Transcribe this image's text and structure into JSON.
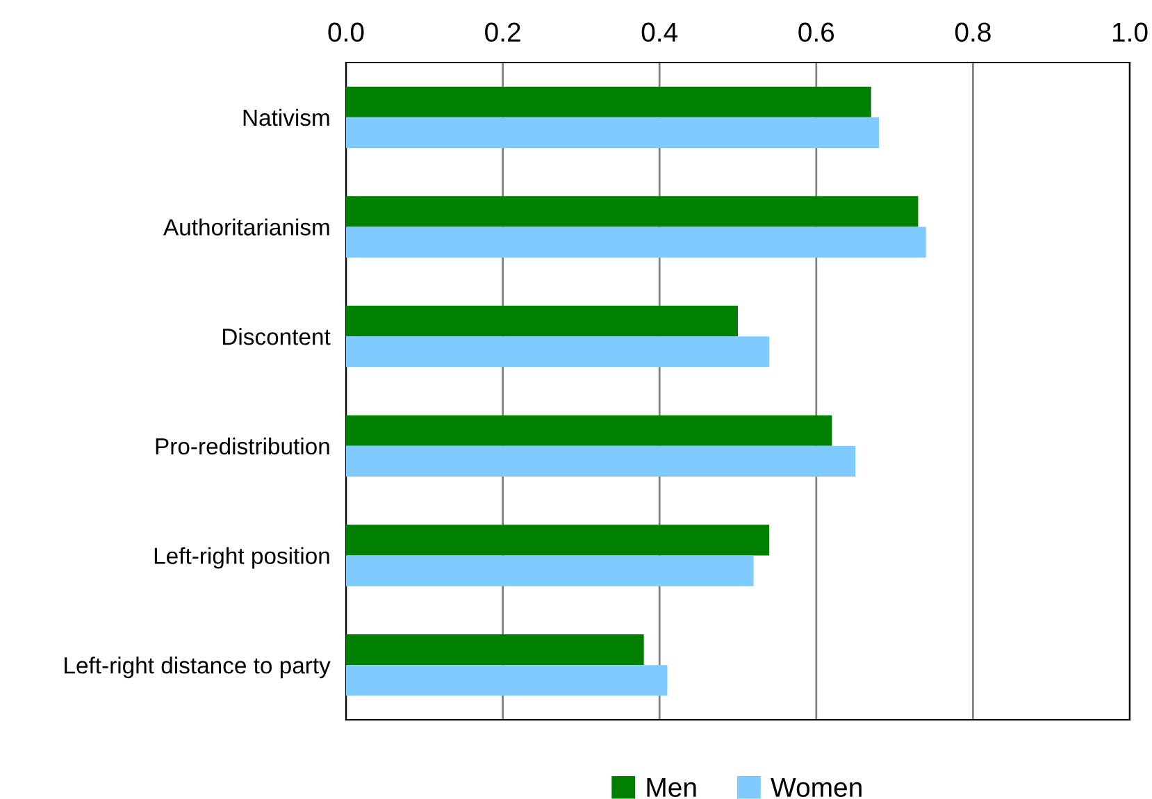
{
  "chart_data": {
    "type": "bar",
    "orientation": "horizontal",
    "categories": [
      "Nativism",
      "Authoritarianism",
      "Discontent",
      "Pro-redistribution",
      "Left-right position",
      "Left-right distance to party"
    ],
    "series": [
      {
        "name": "Men",
        "color": "#008000",
        "values": [
          0.67,
          0.73,
          0.5,
          0.62,
          0.54,
          0.38
        ]
      },
      {
        "name": "Women",
        "color": "#7fcbff",
        "values": [
          0.68,
          0.74,
          0.54,
          0.65,
          0.52,
          0.41
        ]
      }
    ],
    "xlim": [
      0,
      1
    ],
    "xticks": [
      {
        "value": 0.0,
        "label": "0.0"
      },
      {
        "value": 0.2,
        "label": "0.2"
      },
      {
        "value": 0.4,
        "label": "0.4"
      },
      {
        "value": 0.6,
        "label": "0.6"
      },
      {
        "value": 0.8,
        "label": "0.8"
      },
      {
        "value": 1.0,
        "label": "1.0"
      }
    ],
    "grid": "x",
    "legend": "bottom"
  }
}
